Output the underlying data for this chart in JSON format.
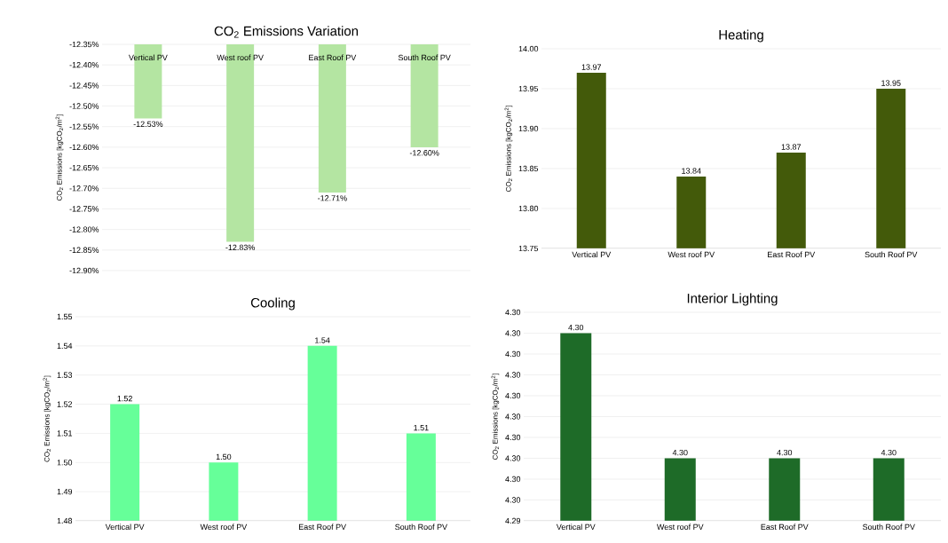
{
  "chart_data": [
    {
      "type": "bar",
      "title": "CO$_{2}$ Emissions Variation",
      "ylabel": "CO$_{2}$ Emissions [kgCO$_{2}$/m$^{2}$]",
      "categories": [
        "Vertical PV",
        "West roof PV",
        "East Roof PV",
        "South Roof PV"
      ],
      "values": [
        -12.53,
        -12.83,
        -12.71,
        -12.6
      ],
      "value_labels": [
        "-12.53%",
        "-12.83%",
        "-12.71%",
        "-12.60%"
      ],
      "color": "#b4e5a2",
      "ylim": [
        -12.9,
        -12.35
      ],
      "yticks": [
        {
          "value": -12.35,
          "label": "-12.35%"
        },
        {
          "value": -12.4,
          "label": "-12.40%"
        },
        {
          "value": -12.45,
          "label": "-12.45%"
        },
        {
          "value": -12.5,
          "label": "-12.50%"
        },
        {
          "value": -12.55,
          "label": "-12.55%"
        },
        {
          "value": -12.6,
          "label": "-12.60%"
        },
        {
          "value": -12.65,
          "label": "-12.65%"
        },
        {
          "value": -12.7,
          "label": "-12.70%"
        },
        {
          "value": -12.75,
          "label": "-12.75%"
        },
        {
          "value": -12.8,
          "label": "-12.80%"
        },
        {
          "value": -12.85,
          "label": "-12.85%"
        },
        {
          "value": -12.9,
          "label": "-12.90%"
        }
      ],
      "grid": "y"
    },
    {
      "type": "bar",
      "title": "Heating",
      "ylabel": "CO$_{2}$ Emissions [kgCO$_{2}$/m$^{2}$]",
      "categories": [
        "Vertical PV",
        "West roof PV",
        "East Roof PV",
        "South Roof PV"
      ],
      "values": [
        13.97,
        13.84,
        13.87,
        13.95
      ],
      "data_labels": true,
      "color": "#435a0a",
      "ylim": [
        13.75,
        14.0
      ],
      "yticks": [
        {
          "value": 13.75,
          "label": "13.75"
        },
        {
          "value": 13.8,
          "label": "13.80"
        },
        {
          "value": 13.85,
          "label": "13.85"
        },
        {
          "value": 13.9,
          "label": "13.90"
        },
        {
          "value": 13.95,
          "label": "13.95"
        },
        {
          "value": 14.0,
          "label": "14.00"
        }
      ],
      "grid": "y"
    },
    {
      "type": "bar",
      "title": "Cooling",
      "ylabel": "CO$_{2}$ Emissions [kgCO$_{2}$/m$^{2}$]",
      "categories": [
        "Vertical PV",
        "West roof PV",
        "East Roof PV",
        "South Roof PV"
      ],
      "values": [
        1.52,
        1.5,
        1.54,
        1.51
      ],
      "value_labels": [
        "1.52",
        "1.50",
        "1.54",
        "1.51"
      ],
      "color": "#66ff99",
      "ylim": [
        1.48,
        1.55
      ],
      "yticks": [
        {
          "value": 1.48,
          "label": "1.48"
        },
        {
          "value": 1.49,
          "label": "1.49"
        },
        {
          "value": 1.5,
          "label": "1.50"
        },
        {
          "value": 1.51,
          "label": "1.51"
        },
        {
          "value": 1.52,
          "label": "1.52"
        },
        {
          "value": 1.53,
          "label": "1.53"
        },
        {
          "value": 1.54,
          "label": "1.54"
        },
        {
          "value": 1.55,
          "label": "1.55"
        }
      ],
      "grid": "y"
    },
    {
      "type": "bar",
      "title": "Interior Lighting",
      "ylabel": "CO$_{2}$ Emissions [kgCO$_{2}$/m$^{2}$]",
      "categories": [
        "Vertical PV",
        "West roof PV",
        "East Roof PV",
        "South Roof PV"
      ],
      "values": [
        4.2984,
        4.296,
        4.296,
        4.296
      ],
      "value_labels": [
        "4.30",
        "4.30",
        "4.30",
        "4.30"
      ],
      "color": "#1e6b28",
      "ylim": [
        4.2948,
        4.2988
      ],
      "yticks": [
        {
          "value": 4.2948,
          "label": "4.29"
        },
        {
          "value": 4.2952,
          "label": "4.30"
        },
        {
          "value": 4.2956,
          "label": "4.30"
        },
        {
          "value": 4.296,
          "label": "4.30"
        },
        {
          "value": 4.2964,
          "label": "4.30"
        },
        {
          "value": 4.2968,
          "label": "4.30"
        },
        {
          "value": 4.2972,
          "label": "4.30"
        },
        {
          "value": 4.2976,
          "label": "4.30"
        },
        {
          "value": 4.298,
          "label": "4.30"
        },
        {
          "value": 4.2984,
          "label": "4.30"
        },
        {
          "value": 4.2988,
          "label": "4.30"
        }
      ],
      "grid": "y"
    }
  ]
}
